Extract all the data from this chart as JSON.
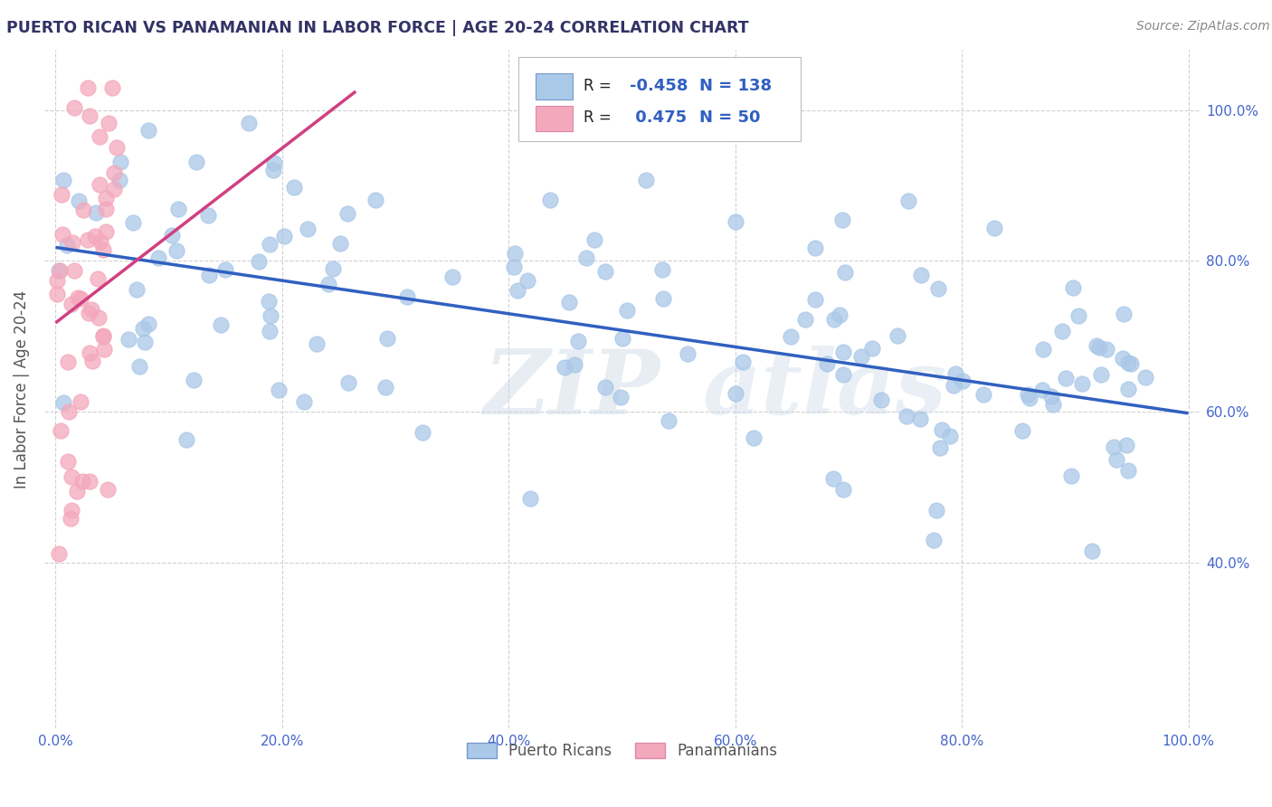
{
  "title": "PUERTO RICAN VS PANAMANIAN IN LABOR FORCE | AGE 20-24 CORRELATION CHART",
  "source_text": "Source: ZipAtlas.com",
  "ylabel": "In Labor Force | Age 20-24",
  "xlim": [
    -0.01,
    1.01
  ],
  "ylim": [
    0.18,
    1.08
  ],
  "blue_R": -0.458,
  "blue_N": 138,
  "pink_R": 0.475,
  "pink_N": 50,
  "blue_dot_color": "#aac8e8",
  "pink_dot_color": "#f4a8bc",
  "blue_line_color": "#3060c0",
  "pink_line_color": "#d04080",
  "watermark_zip": "ZIP",
  "watermark_atlas": "atlas",
  "background_color": "#ffffff",
  "grid_color": "#cccccc",
  "legend_label_blue": "Puerto Ricans",
  "legend_label_pink": "Panamanians",
  "blue_trend_x": [
    0.0,
    1.0
  ],
  "blue_trend_y": [
    0.818,
    0.598
  ],
  "pink_trend_x": [
    0.0,
    0.265
  ],
  "pink_trend_y": [
    0.718,
    1.025
  ],
  "xtick_labels": [
    "0.0%",
    "20.0%",
    "40.0%",
    "60.0%",
    "80.0%",
    "100.0%"
  ],
  "xtick_vals": [
    0.0,
    0.2,
    0.4,
    0.6,
    0.8,
    1.0
  ],
  "ytick_labels_left": [
    "40.0%",
    "60.0%",
    "80.0%",
    "100.0%"
  ],
  "ytick_labels_right": [
    "40.0%",
    "60.0%",
    "80.0%",
    "100.0%"
  ],
  "ytick_vals": [
    0.4,
    0.6,
    0.8,
    1.0
  ],
  "tick_color": "#4466cc",
  "ylabel_color": "#555555",
  "title_color": "#333366",
  "source_color": "#888888"
}
